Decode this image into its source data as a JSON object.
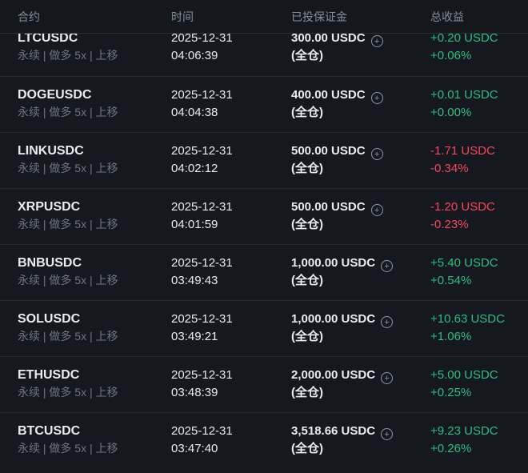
{
  "header": {
    "columns": [
      "合约",
      "时间",
      "已投保证金",
      "总收益"
    ]
  },
  "colors": {
    "positive": "#2ebd85",
    "negative": "#f6465d",
    "background": "#15181e",
    "muted_text": "#848e9c",
    "primary_text": "#eaecef"
  },
  "margin_icon": {
    "name": "circle-plus-icon",
    "glyph": "+"
  },
  "rows": [
    {
      "symbol": "LTCUSDC",
      "tags": "永续 | 做多 5x | 上移",
      "date": "2025-12-31",
      "time": "04:06:39",
      "margin": "300.00 USDC",
      "margin_mode": "(全仓)",
      "pnl": "+0.20 USDC",
      "pnl_pct": "+0.06%"
    },
    {
      "symbol": "DOGEUSDC",
      "tags": "永续 | 做多 5x | 上移",
      "date": "2025-12-31",
      "time": "04:04:38",
      "margin": "400.00 USDC",
      "margin_mode": "(全仓)",
      "pnl": "+0.01 USDC",
      "pnl_pct": "+0.00%"
    },
    {
      "symbol": "LINKUSDC",
      "tags": "永续 | 做多 5x | 上移",
      "date": "2025-12-31",
      "time": "04:02:12",
      "margin": "500.00 USDC",
      "margin_mode": "(全仓)",
      "pnl": "-1.71 USDC",
      "pnl_pct": "-0.34%"
    },
    {
      "symbol": "XRPUSDC",
      "tags": "永续 | 做多 5x | 上移",
      "date": "2025-12-31",
      "time": "04:01:59",
      "margin": "500.00 USDC",
      "margin_mode": "(全仓)",
      "pnl": "-1.20 USDC",
      "pnl_pct": "-0.23%"
    },
    {
      "symbol": "BNBUSDC",
      "tags": "永续 | 做多 5x | 上移",
      "date": "2025-12-31",
      "time": "03:49:43",
      "margin": "1,000.00 USDC",
      "margin_mode": "(全仓)",
      "pnl": "+5.40 USDC",
      "pnl_pct": "+0.54%"
    },
    {
      "symbol": "SOLUSDC",
      "tags": "永续 | 做多 5x | 上移",
      "date": "2025-12-31",
      "time": "03:49:21",
      "margin": "1,000.00 USDC",
      "margin_mode": "(全仓)",
      "pnl": "+10.63 USDC",
      "pnl_pct": "+1.06%"
    },
    {
      "symbol": "ETHUSDC",
      "tags": "永续 | 做多 5x | 上移",
      "date": "2025-12-31",
      "time": "03:48:39",
      "margin": "2,000.00 USDC",
      "margin_mode": "(全仓)",
      "pnl": "+5.00 USDC",
      "pnl_pct": "+0.25%"
    },
    {
      "symbol": "BTCUSDC",
      "tags": "永续 | 做多 5x | 上移",
      "date": "2025-12-31",
      "time": "03:47:40",
      "margin": "3,518.66 USDC",
      "margin_mode": "(全仓)",
      "pnl": "+9.23 USDC",
      "pnl_pct": "+0.26%"
    }
  ]
}
